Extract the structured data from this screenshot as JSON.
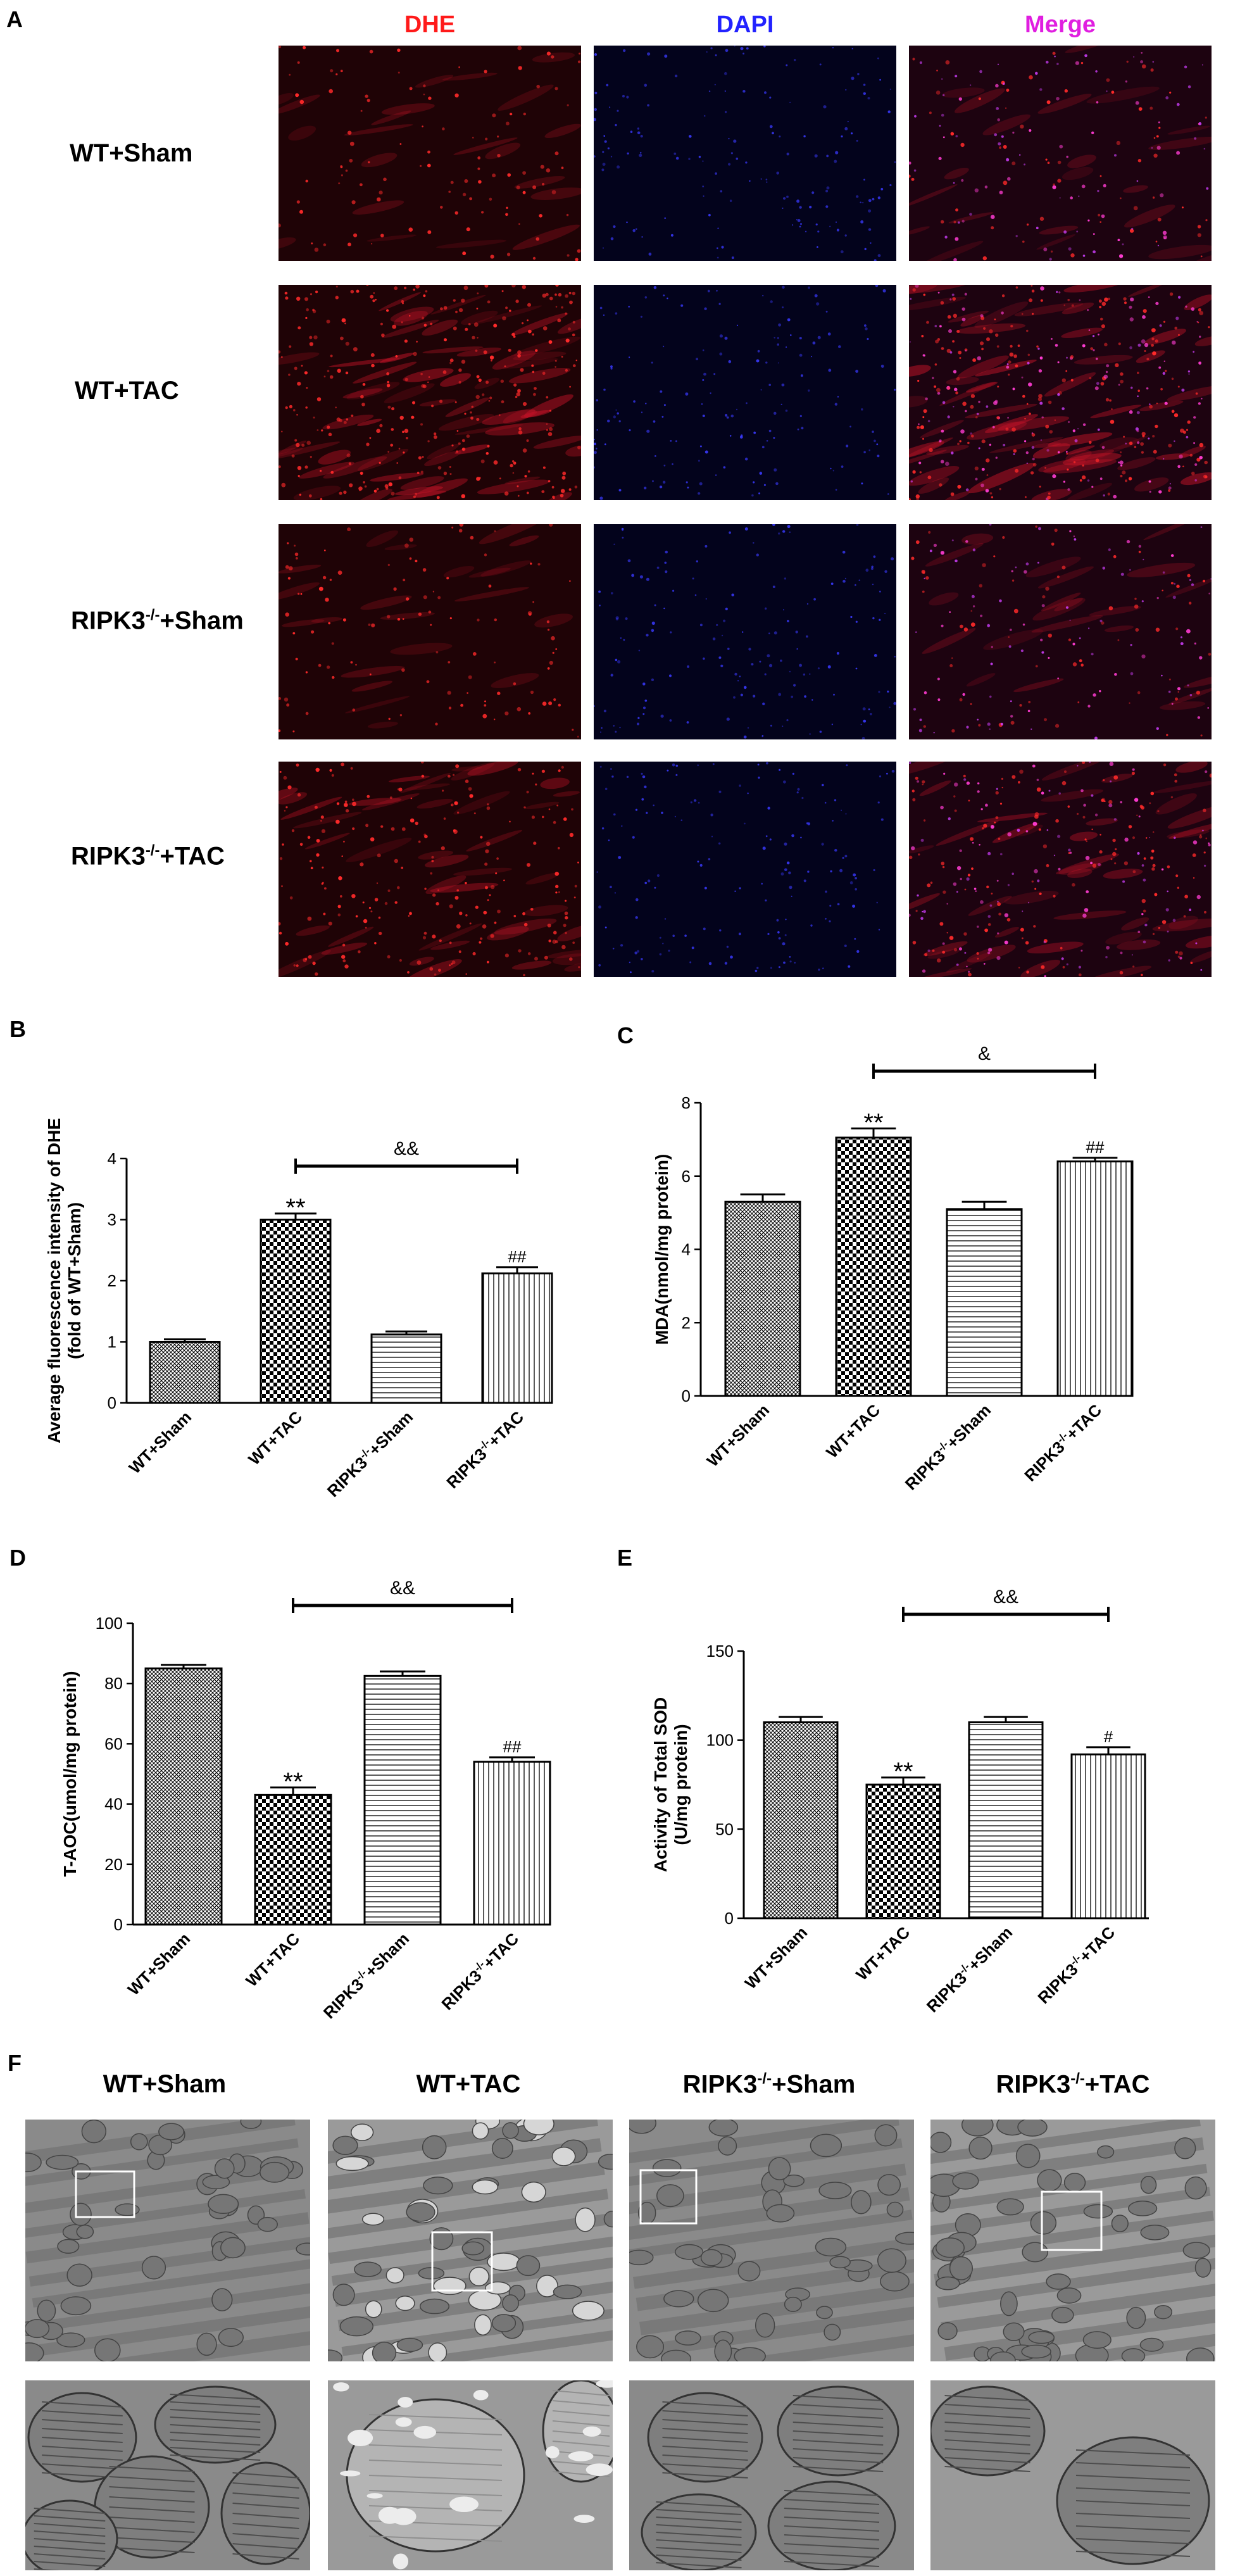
{
  "panel_a": {
    "label": "A",
    "columns": [
      {
        "name": "DHE",
        "color": "#ff1a1a"
      },
      {
        "name": "DAPI",
        "color": "#2222ff"
      },
      {
        "name": "Merge",
        "color": "#e01ee0"
      }
    ],
    "rows": [
      "WT+Sham",
      "WT+TAC",
      "RIPK3-/-+Sham",
      "RIPK3-/-+TAC"
    ]
  },
  "chart_data": [
    {
      "panel": "B",
      "type": "bar",
      "categories": [
        "WT+Sham",
        "WT+TAC",
        "RIPK3-/-+Sham",
        "RIPK3-/-+TAC"
      ],
      "values": [
        1.0,
        3.0,
        1.12,
        2.12
      ],
      "errors": [
        0.04,
        0.1,
        0.05,
        0.1
      ],
      "annotations": [
        "",
        "**",
        "",
        "##"
      ],
      "bracket": {
        "from": 1,
        "to": 3,
        "label": "&&"
      },
      "ylabel": "Average fluorescence intensity of DHE\n(fold of WT+Sham)",
      "ylim": [
        0,
        4
      ],
      "yticks": [
        0,
        1,
        2,
        3,
        4
      ]
    },
    {
      "panel": "C",
      "type": "bar",
      "categories": [
        "WT+Sham",
        "WT+TAC",
        "RIPK3-/-+Sham",
        "RIPK3-/-+TAC"
      ],
      "values": [
        5.3,
        7.05,
        5.1,
        6.4
      ],
      "errors": [
        0.2,
        0.25,
        0.2,
        0.1
      ],
      "annotations": [
        "",
        "**",
        "",
        "##"
      ],
      "bracket": {
        "from": 1,
        "to": 3,
        "label": "&"
      },
      "ylabel": "MDA(nmol/mg protein)",
      "ylim": [
        0,
        8
      ],
      "yticks": [
        0,
        2,
        4,
        6,
        8
      ]
    },
    {
      "panel": "D",
      "type": "bar",
      "categories": [
        "WT+Sham",
        "WT+TAC",
        "RIPK3-/-+Sham",
        "RIPK3-/-+TAC"
      ],
      "values": [
        85,
        43,
        82.5,
        54
      ],
      "errors": [
        1.2,
        2.5,
        1.5,
        1.5
      ],
      "annotations": [
        "",
        "**",
        "",
        "##"
      ],
      "bracket": {
        "from": 1,
        "to": 3,
        "label": "&&"
      },
      "ylabel": "T-AOC(umol/mg protein)",
      "ylim": [
        0,
        100
      ],
      "yticks": [
        0,
        20,
        40,
        60,
        80,
        100
      ]
    },
    {
      "panel": "E",
      "type": "bar",
      "categories": [
        "WT+Sham",
        "WT+TAC",
        "RIPK3-/-+Sham",
        "RIPK3-/-+TAC"
      ],
      "values": [
        110,
        75,
        110,
        92
      ],
      "errors": [
        3,
        4,
        3,
        4
      ],
      "annotations": [
        "",
        "**",
        "",
        "#"
      ],
      "bracket": {
        "from": 1,
        "to": 3,
        "label": "&&"
      },
      "ylabel": "Activity of Total SOD\n(U/mg protein)",
      "ylim": [
        0,
        150
      ],
      "yticks": [
        0,
        50,
        100,
        150
      ]
    }
  ],
  "panel_f": {
    "label": "F",
    "columns": [
      "WT+Sham",
      "WT+TAC",
      "RIPK3-/-+Sham",
      "RIPK3-/-+TAC"
    ]
  }
}
